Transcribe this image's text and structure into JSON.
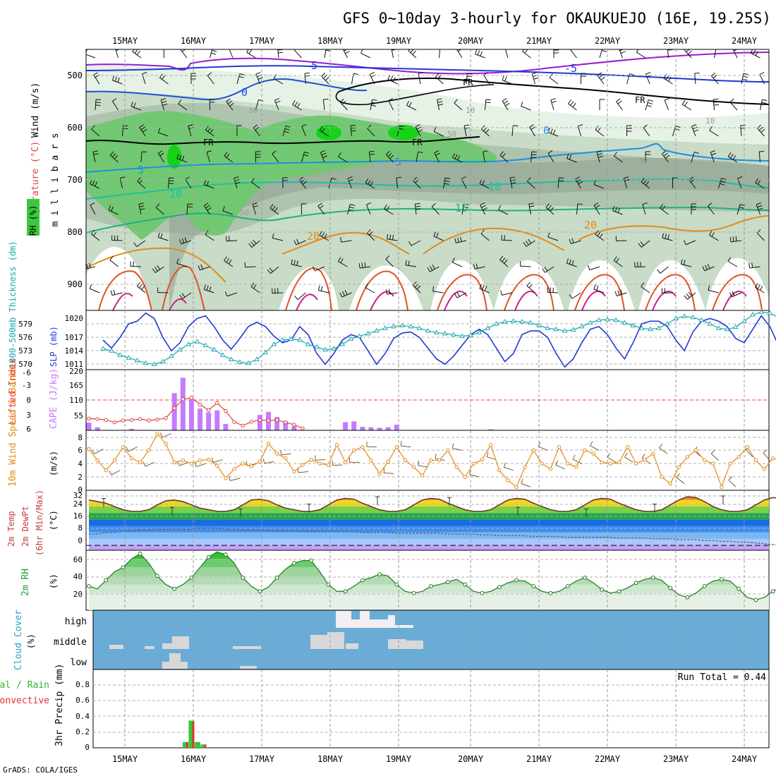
{
  "header": {
    "title": "GFS 0~10day 3-hourly for OKAUKUEJO (16E, 19.25S)",
    "credit": "GrADS: COLA/IGES"
  },
  "dates": [
    "15MAY",
    "16MAY",
    "17MAY",
    "18MAY",
    "19MAY",
    "20MAY",
    "21MAY",
    "22MAY",
    "23MAY",
    "24MAY"
  ],
  "colors": {
    "temp_purple": "#9a1ad2",
    "blue": "#1f3ad6",
    "light_blue": "#1e90e0",
    "teal": "#1ec0a0",
    "green_line": "#20b060",
    "orange": "#e68a14",
    "magenta": "#d21e8c",
    "rh_green": "#3cc83c",
    "cape": "#c57aff",
    "cloud_bg": "#6aacd6",
    "precip_green": "#34c834",
    "precip_red": "#e83030"
  },
  "chart_data": [
    {
      "panel": "upper-air",
      "type": "heatmap",
      "ylabel": "m i l l i b a r s",
      "label_parts": [
        "Wind (m/s)",
        "Temperature (°C)",
        "RH (%)"
      ],
      "yticks": [
        500,
        600,
        700,
        800,
        900
      ],
      "ylim": [
        455,
        955
      ],
      "contour_labels": [
        "-5",
        "0",
        "5",
        "10",
        "15",
        "20",
        "FR",
        "30",
        "50",
        "10"
      ],
      "freezing_level_label": "FR"
    },
    {
      "panel": "slp-thickness",
      "type": "line",
      "left_label": "1000-500mb Thickness (dm)",
      "right_label": "SLP (mb)",
      "left_ticks": [
        "570",
        "573",
        "576",
        "579"
      ],
      "right_ticks": [
        "1011",
        "1014",
        "1017",
        "1020"
      ],
      "series": [
        {
          "name": "SLP (mb)",
          "ylim": [
            1010,
            1021
          ],
          "values": [
            1015.5,
            1014.0,
            1016.0,
            1018.5,
            1019.0,
            1020.5,
            1019.5,
            1016.0,
            1013.5,
            1015.0,
            1018.0,
            1019.5,
            1020.0,
            1018.0,
            1015.5,
            1013.8,
            1015.8,
            1018.0,
            1018.8,
            1018.0,
            1016.2,
            1015.0,
            1015.5,
            1018.0,
            1016.5,
            1013.0,
            1011.0,
            1013.0,
            1015.5,
            1016.5,
            1016.0,
            1013.5,
            1011.0,
            1013.0,
            1015.8,
            1016.8,
            1017.0,
            1016.0,
            1014.0,
            1012.0,
            1011.0,
            1012.5,
            1014.5,
            1016.5,
            1017.5,
            1016.5,
            1014.0,
            1011.5,
            1013.0,
            1016.5,
            1017.2,
            1017.2,
            1016.0,
            1013.0,
            1010.5,
            1012.0,
            1015.0,
            1017.5,
            1018.0,
            1016.5,
            1014.0,
            1012.0,
            1015.0,
            1018.5,
            1019.0,
            1019.0,
            1018.0,
            1015.5,
            1013.5,
            1017.0,
            1019.0,
            1019.5,
            1019.0,
            1018.0,
            1015.8,
            1015.0,
            1017.5,
            1020.0,
            1018.0,
            1014.5,
            1013.0,
            1017.0,
            1019.0,
            1017.5,
            1014.5,
            1013.0,
            1016.5,
            1019.5
          ]
        },
        {
          "name": "1000-500mb Thickness (dm)",
          "ylim": [
            569.3,
            580.3
          ],
          "values": [
            573.2,
            572.8,
            572.0,
            571.5,
            571.0,
            570.5,
            570.3,
            570.8,
            571.8,
            573.0,
            574.0,
            574.5,
            573.8,
            573.0,
            572.0,
            571.2,
            570.7,
            570.5,
            571.2,
            572.5,
            574.0,
            574.8,
            575.0,
            574.8,
            574.0,
            573.5,
            573.0,
            573.2,
            574.0,
            575.0,
            575.5,
            576.0,
            576.5,
            577.0,
            577.3,
            577.5,
            577.3,
            577.0,
            576.5,
            576.2,
            576.0,
            575.8,
            575.5,
            575.7,
            576.2,
            577.0,
            577.8,
            578.2,
            578.3,
            578.2,
            578.0,
            577.5,
            577.0,
            576.8,
            576.5,
            576.7,
            577.3,
            578.0,
            578.5,
            578.6,
            578.5,
            578.0,
            577.5,
            577.0,
            576.8,
            577.0,
            577.8,
            578.8,
            579.2,
            579.0,
            578.5,
            577.8,
            577.0,
            576.8,
            577.2,
            578.3,
            579.5,
            580.0,
            579.8,
            579.0,
            578.0,
            577.2,
            577.0,
            577.3,
            577.5,
            577.0,
            576.3,
            575.6,
            575.0
          ]
        }
      ]
    },
    {
      "panel": "stability",
      "type": "bar",
      "left_label": "Lifted Index",
      "right_label": "CAPE (J/kg)",
      "left_ticks": [
        "-6",
        "-3",
        "0",
        "3",
        "6"
      ],
      "right_ticks": [
        "55",
        "110",
        "165",
        "220"
      ],
      "cape_ylim": [
        0,
        220
      ],
      "lifted_index_ylim": [
        6,
        -6
      ],
      "cape_values": [
        30,
        12,
        0,
        0,
        0,
        6,
        0,
        0,
        0,
        0,
        145,
        205,
        120,
        85,
        70,
        78,
        25,
        0,
        0,
        0,
        60,
        72,
        52,
        35,
        15,
        0,
        0,
        0,
        0,
        0,
        32,
        35,
        14,
        12,
        10,
        12,
        22,
        0,
        0,
        0,
        0,
        0,
        0,
        0,
        0,
        0,
        0,
        4,
        0,
        0,
        0,
        0,
        0,
        0,
        0,
        0,
        0,
        0,
        0,
        0,
        0,
        0,
        0,
        0,
        0,
        0,
        0,
        0,
        0,
        0,
        0,
        0,
        0,
        0,
        0,
        0,
        0,
        0,
        0,
        0,
        0,
        0,
        0,
        0,
        0,
        0,
        0,
        0,
        0
      ],
      "lifted_index_values": [
        3.8,
        3.9,
        4.1,
        4.6,
        4.2,
        4.1,
        3.9,
        4.2,
        4.0,
        3.7,
        1.6,
        -0.3,
        -0.6,
        0.8,
        2.0,
        0.5,
        2.2,
        4.5,
        5.3,
        4.5,
        4.1,
        4.2,
        4.1,
        4.6,
        5.1,
        5.9
      ]
    },
    {
      "panel": "wind-10m",
      "type": "line",
      "left_label": "10m Wind Speed & Barbs",
      "unit": "(m/s)",
      "ylim": [
        0,
        9
      ],
      "yticks": [
        "0",
        "2",
        "4",
        "6",
        "8"
      ],
      "values": [
        6.2,
        4.5,
        3.0,
        4.5,
        6.5,
        4.8,
        4.2,
        6.0,
        8.5,
        7.0,
        4.2,
        4.5,
        4.0,
        4.5,
        4.6,
        3.7,
        1.8,
        3.2,
        4.0,
        3.6,
        4.3,
        7.0,
        5.5,
        4.8,
        2.8,
        3.8,
        4.6,
        4.0,
        3.8,
        6.8,
        4.2,
        6.0,
        6.5,
        4.5,
        2.5,
        4.3,
        6.5,
        4.5,
        3.5,
        2.2,
        4.5,
        4.5,
        6.0,
        3.5,
        2.0,
        4.0,
        4.6,
        6.8,
        3.0,
        1.5,
        0.5,
        3.5,
        6.0,
        4.0,
        3.2,
        6.5,
        4.0,
        3.5,
        6.0,
        5.5,
        4.2,
        4.0,
        4.2,
        6.5,
        4.0,
        4.6,
        5.5,
        2.0,
        1.0,
        3.5,
        5.0,
        6.0,
        4.5,
        4.0,
        0.5,
        4.0,
        5.0,
        6.5,
        4.5,
        3.2,
        4.8,
        4.5,
        4.2,
        4.2,
        6.5,
        4.5,
        4.0,
        5.0,
        6.5
      ]
    },
    {
      "panel": "temperature-2m",
      "type": "area",
      "left_label": "2m Temp",
      "left_label_2": "2m DewPt",
      "left_label_3": "(6hr Min/Max)",
      "unit": "(°C)",
      "ylim": [
        -3,
        34
      ],
      "yticks": [
        "0",
        "8",
        "16",
        "24",
        "32"
      ],
      "temp_values": [
        28,
        27,
        26,
        24,
        22,
        21,
        21,
        22,
        25,
        27.5,
        28,
        27,
        25,
        23,
        22,
        21,
        21,
        22,
        25,
        28,
        28.5,
        27.5,
        25,
        23,
        22,
        21,
        21,
        22,
        25,
        28,
        29,
        28.5,
        26,
        24,
        22,
        21,
        21,
        22,
        25,
        28,
        29,
        28.5,
        26,
        24,
        22,
        21,
        21,
        22,
        25,
        28,
        29,
        28.5,
        26,
        24,
        22,
        21,
        21,
        22,
        25,
        28,
        29,
        28.5,
        26,
        24,
        22,
        21,
        21,
        22,
        25,
        28,
        30,
        29.5,
        27,
        24,
        22,
        21,
        21,
        22,
        25,
        28,
        29.5,
        29,
        27,
        24,
        22,
        21,
        21,
        22,
        25,
        28,
        29.5,
        29,
        26,
        23,
        21,
        19,
        18,
        18
      ],
      "dewpoint_values": [
        7,
        7,
        8,
        8,
        9,
        9,
        9.5,
        9.5,
        10,
        10,
        10,
        10,
        10,
        10.5,
        10.5,
        10.5,
        10,
        10,
        9.5,
        9.5,
        9.5,
        9,
        9,
        9,
        9,
        8.5,
        8.5,
        8.5,
        8.5,
        8.5,
        8.5,
        8.5,
        8,
        8,
        8,
        8,
        7.5,
        7.5,
        7.5,
        7.5,
        7.5,
        7.5,
        7,
        7,
        7,
        7,
        6.5,
        6.5,
        6,
        6,
        6,
        6,
        5.5,
        5.5,
        5.5,
        5.5,
        5,
        5,
        5,
        5,
        5,
        5,
        4.5,
        4.5,
        4.5,
        4.5,
        4,
        4,
        4,
        3.5,
        3.5,
        3.5,
        3,
        3,
        2.5,
        2.5,
        2,
        2,
        1.5,
        1,
        0.5,
        0,
        -0.5,
        -1.5,
        -1,
        -0.5,
        0.5,
        1.5,
        2.5,
        3.5,
        4,
        5,
        6
      ]
    },
    {
      "panel": "rh-2m",
      "type": "area",
      "left_label": "2m RH",
      "unit": "(%)",
      "ylim": [
        0,
        70
      ],
      "yticks": [
        "20",
        "40",
        "60"
      ],
      "values": [
        28,
        25,
        35,
        45,
        50,
        60,
        66,
        55,
        40,
        30,
        25,
        30,
        38,
        50,
        62,
        68,
        65,
        55,
        38,
        28,
        22,
        27,
        38,
        48,
        55,
        58,
        58,
        45,
        30,
        22,
        22,
        28,
        35,
        38,
        42,
        40,
        30,
        22,
        20,
        22,
        28,
        30,
        33,
        36,
        30,
        22,
        20,
        22,
        27,
        32,
        35,
        34,
        28,
        22,
        20,
        22,
        28,
        34,
        38,
        32,
        24,
        20,
        22,
        26,
        32,
        36,
        38,
        35,
        26,
        18,
        15,
        20,
        28,
        34,
        36,
        34,
        25,
        15,
        12,
        15,
        22,
        28,
        30,
        28,
        22,
        15,
        13,
        20,
        28,
        35,
        40,
        45
      ]
    },
    {
      "panel": "cloud-cover",
      "type": "heatmap",
      "left_label": "Cloud Cover",
      "unit": "(%)",
      "levels": [
        "high",
        "middle",
        "low"
      ]
    },
    {
      "panel": "precipitation",
      "type": "bar",
      "left_label_total": "Total / Rain",
      "left_label_conv": "Convective",
      "ylabel": "3hr Precip (mm)",
      "ylim": [
        0,
        0.95
      ],
      "yticks": [
        "0",
        "0.2",
        "0.4",
        "0.6",
        "0.8"
      ],
      "run_total_label": "Run Total = 0.44",
      "bars": [
        {
          "step": 11.3,
          "total": 0.07,
          "convective": 0.07
        },
        {
          "step": 12.0,
          "total": 0.33,
          "convective": 0.32
        },
        {
          "step": 12.7,
          "total": 0.07,
          "convective": 0.0
        },
        {
          "step": 13.4,
          "total": 0.04,
          "convective": 0.04
        }
      ]
    }
  ]
}
